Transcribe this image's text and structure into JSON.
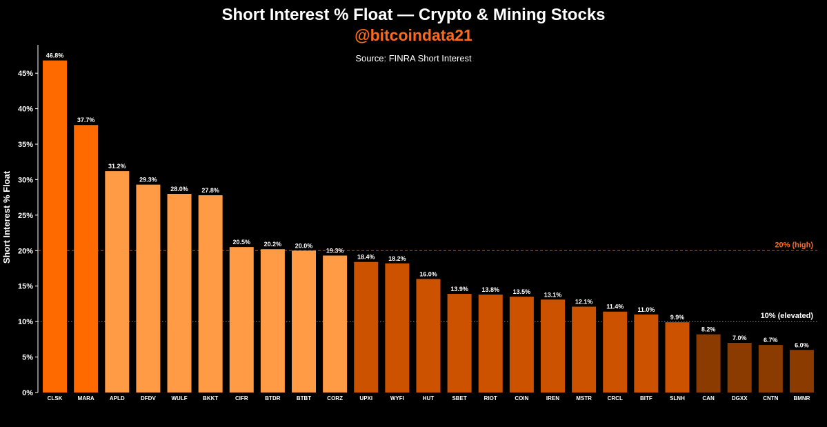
{
  "chart_data": {
    "type": "bar",
    "title": "Short Interest % Float — Crypto & Mining Stocks",
    "handle": "@bitcoindata21",
    "subtitle": "Source: FINRA Short Interest",
    "xlabel": "",
    "ylabel": "Short Interest % Float",
    "ylim": [
      0,
      49
    ],
    "yticks": [
      0,
      5,
      10,
      15,
      20,
      25,
      30,
      35,
      40,
      45
    ],
    "ytick_suffix": "%",
    "grid": false,
    "categories": [
      "CLSK",
      "MARA",
      "APLD",
      "DFDV",
      "WULF",
      "BKKT",
      "CIFR",
      "BTDR",
      "BTBT",
      "CORZ",
      "UPXI",
      "WYFI",
      "HUT",
      "SBET",
      "RIOT",
      "COIN",
      "IREN",
      "MSTR",
      "CRCL",
      "BITF",
      "SLNH",
      "CAN",
      "DGXX",
      "CNTN",
      "BMNR"
    ],
    "values": [
      46.8,
      37.7,
      31.2,
      29.3,
      28.0,
      27.8,
      20.5,
      20.2,
      20.0,
      19.3,
      18.4,
      18.2,
      16.0,
      13.9,
      13.8,
      13.5,
      13.1,
      12.1,
      11.4,
      11.0,
      9.9,
      8.2,
      7.0,
      6.7,
      6.0
    ],
    "value_labels": [
      "46.8%",
      "37.7%",
      "31.2%",
      "29.3%",
      "28.0%",
      "27.8%",
      "20.5%",
      "20.2%",
      "20.0%",
      "19.3%",
      "18.4%",
      "18.2%",
      "16.0%",
      "13.9%",
      "13.8%",
      "13.5%",
      "13.1%",
      "12.1%",
      "11.4%",
      "11.0%",
      "9.9%",
      "8.2%",
      "7.0%",
      "6.7%",
      "6.0%"
    ],
    "color_tiers": [
      {
        "min": 35,
        "color": "#ff6a00"
      },
      {
        "min": 19,
        "color": "#ff9a45"
      },
      {
        "min": 9,
        "color": "#cc5200"
      },
      {
        "min": 0,
        "color": "#8b3a00"
      }
    ],
    "reference_lines": [
      {
        "value": 20,
        "label": "20% (high)",
        "color": "#ff6a1a",
        "style": "dashed"
      },
      {
        "value": 10,
        "label": "10% (elevated)",
        "color": "#ffffff",
        "style": "dotted"
      }
    ]
  },
  "colors": {
    "background": "#000000",
    "text": "#ffffff",
    "handle": "#ff6a1a",
    "axis": "#ffffff"
  }
}
